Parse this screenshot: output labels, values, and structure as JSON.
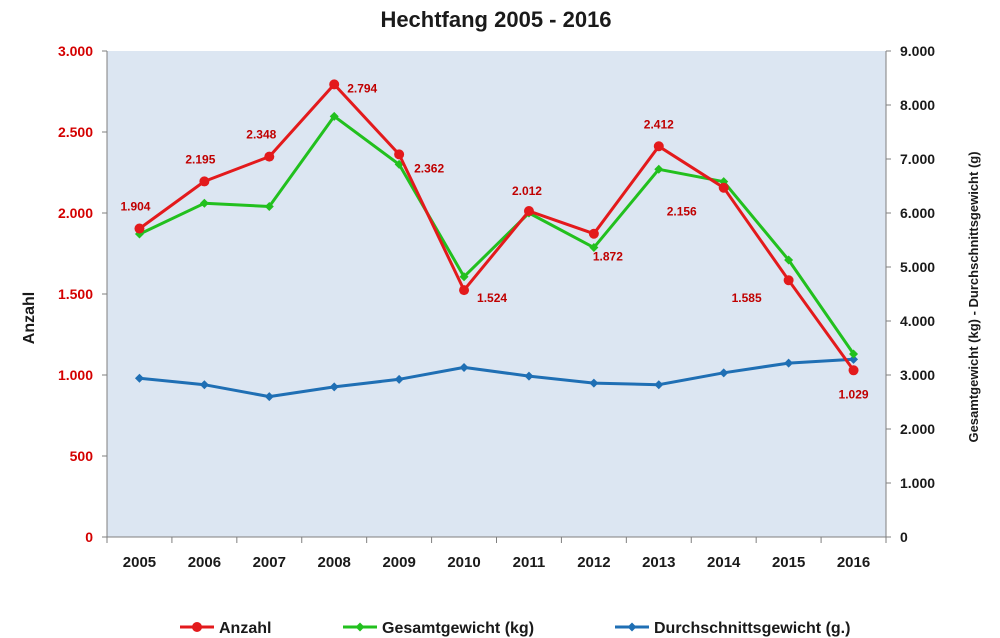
{
  "chart_data": {
    "type": "line",
    "title": "Hechtfang 2005 - 2016",
    "ylabel": "Anzahl",
    "y2label": "Gesamtgewicht (kg) - Durchschnittsgewicht (g)",
    "categories": [
      "2005",
      "2006",
      "2007",
      "2008",
      "2009",
      "2010",
      "2011",
      "2012",
      "2013",
      "2014",
      "2015",
      "2016"
    ],
    "ylim": [
      0,
      3000
    ],
    "y2lim": [
      0,
      9000
    ],
    "yticks": [
      0,
      500,
      1000,
      1500,
      2000,
      2500,
      3000
    ],
    "y2ticks": [
      0,
      1000,
      2000,
      3000,
      4000,
      5000,
      6000,
      7000,
      8000,
      9000
    ],
    "ytick_labels": [
      "0",
      "500",
      "1.000",
      "1.500",
      "2.000",
      "2.500",
      "3.000"
    ],
    "y2tick_labels": [
      "0",
      "1.000",
      "2.000",
      "3.000",
      "4.000",
      "5.000",
      "6.000",
      "7.000",
      "8.000",
      "9.000"
    ],
    "legend_position": "bottom",
    "grid": false,
    "plot_background": "#dce6f2",
    "series": [
      {
        "name": "Anzahl",
        "axis": "left",
        "color": "#e31a1c",
        "marker": "circle",
        "values": [
          1904,
          2195,
          2348,
          2794,
          2362,
          1524,
          2012,
          1872,
          2412,
          2156,
          1585,
          1029
        ],
        "labels": [
          "1.904",
          "2.195",
          "2.348",
          "2.794",
          "2.362",
          "1.524",
          "2.012",
          "1.872",
          "2.412",
          "2.156",
          "1.585",
          "1.029"
        ]
      },
      {
        "name": "Gesamtgewicht (kg)",
        "axis": "right",
        "color": "#22c01e",
        "marker": "diamond",
        "values": [
          5610,
          6180,
          6120,
          7790,
          6900,
          4820,
          6000,
          5360,
          6810,
          6580,
          5130,
          3390
        ]
      },
      {
        "name": "Durchschnittsgewicht (g.)",
        "axis": "right",
        "color": "#1f6fb4",
        "marker": "diamond",
        "values": [
          2940,
          2820,
          2600,
          2780,
          2920,
          3140,
          2980,
          2850,
          2820,
          3040,
          3220,
          3290
        ]
      }
    ]
  }
}
